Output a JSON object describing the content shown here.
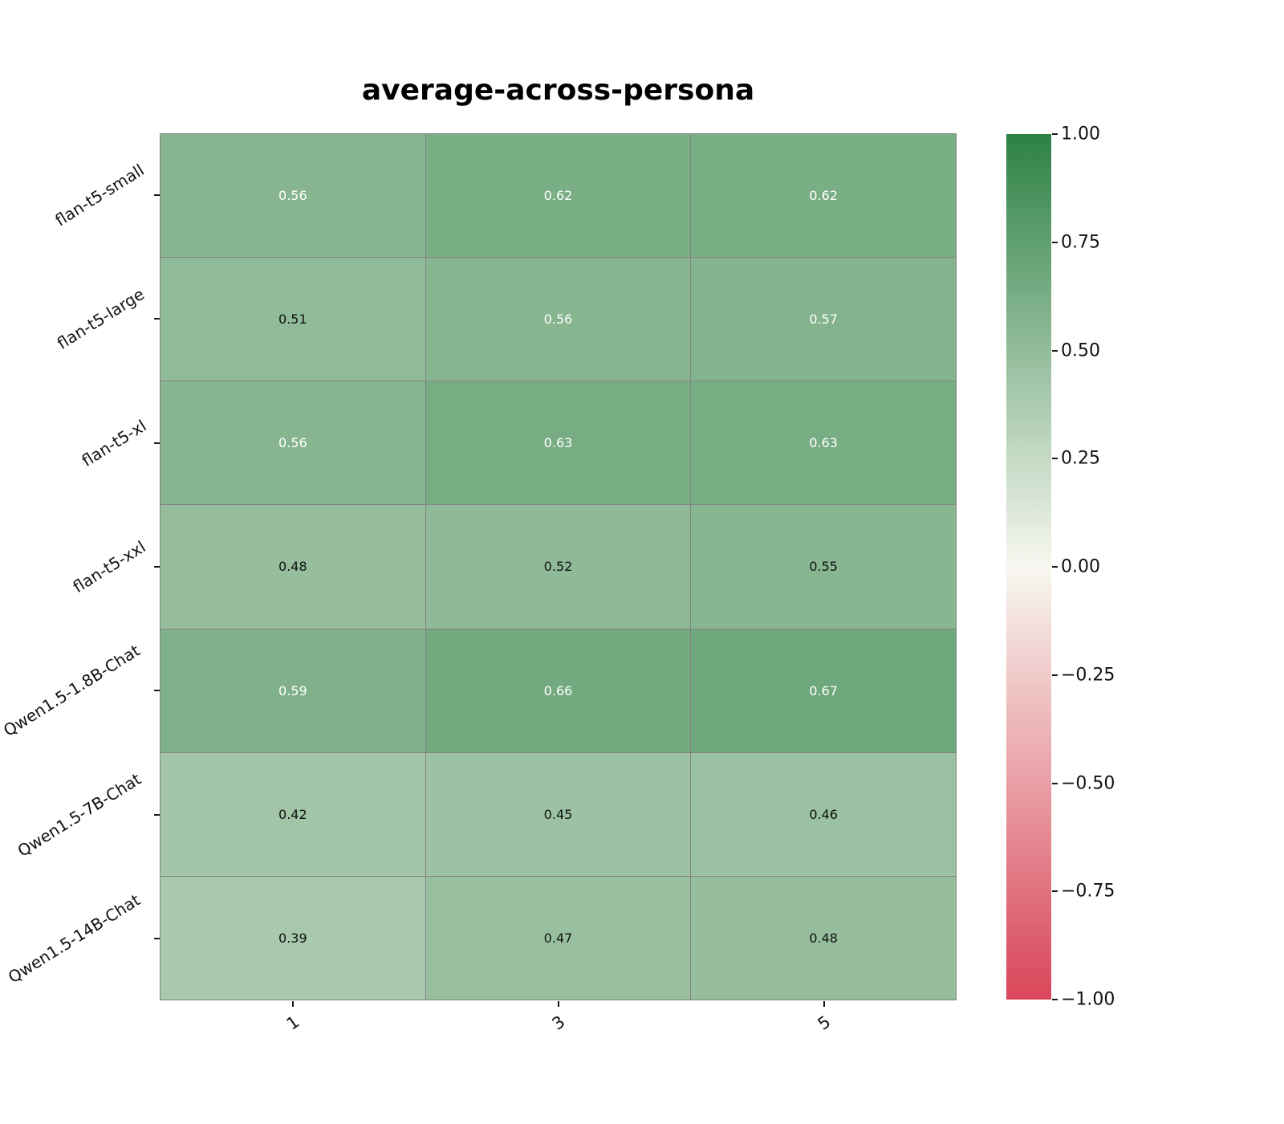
{
  "chart_data": {
    "type": "heatmap",
    "title": "average-across-persona",
    "rows": [
      "flan-t5-small",
      "flan-t5-large",
      "flan-t5-xl",
      "flan-t5-xxl",
      "Qwen1.5-1.8B-Chat",
      "Qwen1.5-7B-Chat",
      "Qwen1.5-14B-Chat"
    ],
    "columns": [
      "1",
      "3",
      "5"
    ],
    "values": [
      [
        0.56,
        0.62,
        0.62
      ],
      [
        0.51,
        0.56,
        0.57
      ],
      [
        0.56,
        0.63,
        0.63
      ],
      [
        0.48,
        0.52,
        0.55
      ],
      [
        0.59,
        0.66,
        0.67
      ],
      [
        0.42,
        0.45,
        0.46
      ],
      [
        0.39,
        0.47,
        0.48
      ]
    ],
    "colorbar": {
      "min": -1.0,
      "max": 1.0,
      "tick_values": [
        1.0,
        0.75,
        0.5,
        0.25,
        0.0,
        -0.25,
        -0.5,
        -0.75,
        -1.0
      ],
      "tick_labels": [
        "1.00",
        "0.75",
        "0.50",
        "0.25",
        "0.00",
        "−0.25",
        "−0.50",
        "−0.75",
        "−1.00"
      ],
      "position": "right"
    },
    "colors": {
      "positive_end": "#2d8144",
      "zero": "#f7f7f0",
      "negative_end": "#d94659",
      "grid_line": "#828282",
      "cell_text_light": "#ffffff",
      "cell_text_dark": "#111111"
    },
    "layout": {
      "grid": true,
      "x_label_rotation_deg": 35,
      "y_label_rotation_deg": 32
    }
  }
}
